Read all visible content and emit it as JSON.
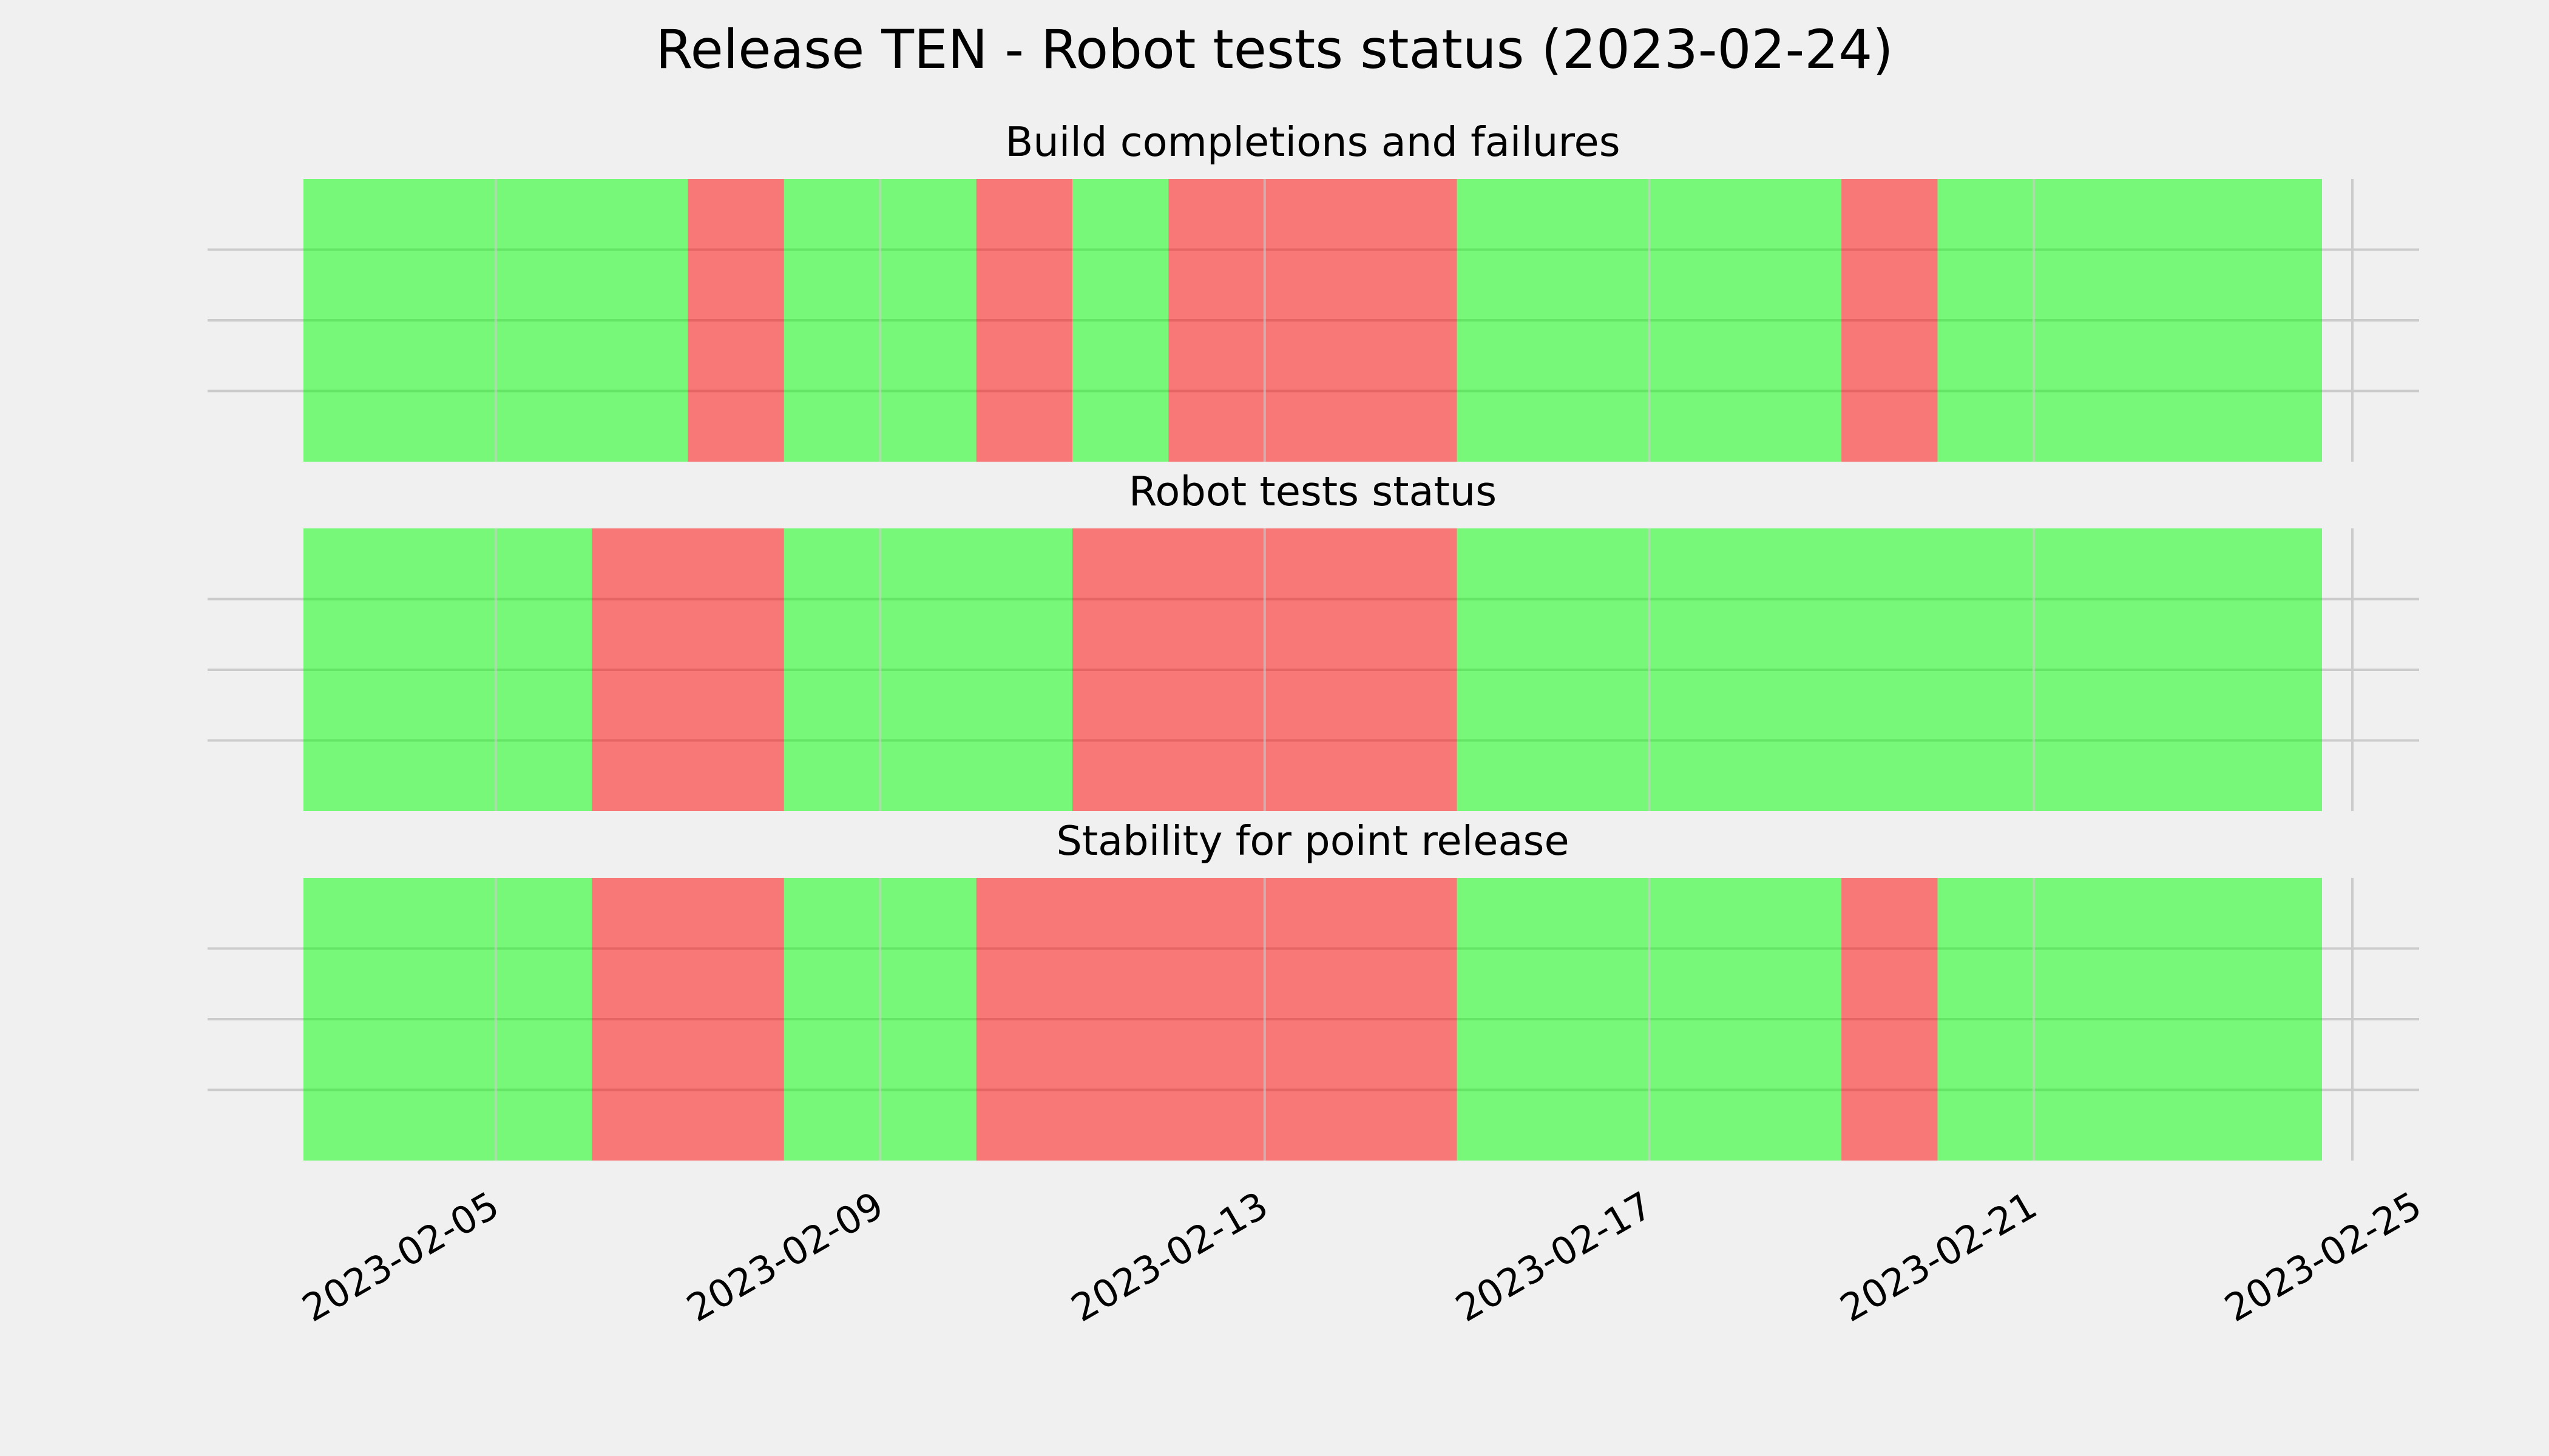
{
  "title": "Release TEN - Robot tests status (2023-02-24)",
  "colors": {
    "background": "#f0f0f0",
    "pass": "#00ff00",
    "fail": "#ff0000",
    "grid": "#cbcbcb"
  },
  "chart_data": {
    "type": "timeline",
    "x_axis": {
      "type": "date",
      "range": [
        "2023-02-03",
        "2023-02-25"
      ],
      "ticks": [
        "2023-02-05",
        "2023-02-09",
        "2023-02-13",
        "2023-02-17",
        "2023-02-21",
        "2023-02-25"
      ]
    },
    "grid": true,
    "panels": [
      {
        "title": "Build completions and failures",
        "segments": [
          {
            "start": "2023-02-03",
            "end": "2023-02-07",
            "status": "pass"
          },
          {
            "start": "2023-02-07",
            "end": "2023-02-08",
            "status": "fail"
          },
          {
            "start": "2023-02-08",
            "end": "2023-02-10",
            "status": "pass"
          },
          {
            "start": "2023-02-10",
            "end": "2023-02-11",
            "status": "fail"
          },
          {
            "start": "2023-02-11",
            "end": "2023-02-12",
            "status": "pass"
          },
          {
            "start": "2023-02-12",
            "end": "2023-02-15",
            "status": "fail"
          },
          {
            "start": "2023-02-15",
            "end": "2023-02-19",
            "status": "pass"
          },
          {
            "start": "2023-02-19",
            "end": "2023-02-20",
            "status": "fail"
          },
          {
            "start": "2023-02-20",
            "end": "2023-02-24",
            "status": "pass"
          }
        ]
      },
      {
        "title": "Robot tests status",
        "segments": [
          {
            "start": "2023-02-03",
            "end": "2023-02-06",
            "status": "pass"
          },
          {
            "start": "2023-02-06",
            "end": "2023-02-08",
            "status": "fail"
          },
          {
            "start": "2023-02-08",
            "end": "2023-02-11",
            "status": "pass"
          },
          {
            "start": "2023-02-11",
            "end": "2023-02-15",
            "status": "fail"
          },
          {
            "start": "2023-02-15",
            "end": "2023-02-24",
            "status": "pass"
          }
        ]
      },
      {
        "title": "Stability for point release",
        "segments": [
          {
            "start": "2023-02-03",
            "end": "2023-02-06",
            "status": "pass"
          },
          {
            "start": "2023-02-06",
            "end": "2023-02-08",
            "status": "fail"
          },
          {
            "start": "2023-02-08",
            "end": "2023-02-10",
            "status": "pass"
          },
          {
            "start": "2023-02-10",
            "end": "2023-02-15",
            "status": "fail"
          },
          {
            "start": "2023-02-15",
            "end": "2023-02-19",
            "status": "pass"
          },
          {
            "start": "2023-02-19",
            "end": "2023-02-20",
            "status": "fail"
          },
          {
            "start": "2023-02-20",
            "end": "2023-02-24",
            "status": "pass"
          }
        ]
      }
    ]
  }
}
